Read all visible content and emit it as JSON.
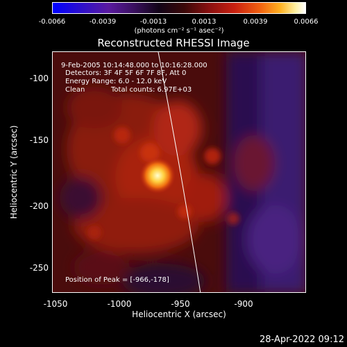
{
  "colorbar": {
    "ticks": [
      "-0.0066",
      "-0.0039",
      "-0.0013",
      "0.0013",
      "0.0039",
      "0.0066"
    ],
    "units": "(photons cm⁻² s⁻¹ asec⁻²)"
  },
  "title": "Reconstructed RHESSI Image",
  "info": {
    "time_range": "9-Feb-2005 10:14:48.000 to 10:16:28.000",
    "detectors": "Detectors: 3F 4F 5F 6F 7F 8F, Att 0",
    "energy": "Energy Range: 6.0 - 12.0 keV",
    "method": "Clean",
    "counts": "Total counts: 6.97E+03",
    "peak": "Position of Peak = [-966,-178]"
  },
  "axes": {
    "xlabel": "Heliocentric X (arcsec)",
    "ylabel": "Heliocentric Y (arcsec)",
    "xticks": [
      "-1050",
      "-1000",
      "-950",
      "-900"
    ],
    "yticks": [
      "-100",
      "-150",
      "-200",
      "-250"
    ]
  },
  "peak": {
    "x": -966,
    "y": -178
  },
  "timestamp": "28-Apr-2022 09:12"
}
